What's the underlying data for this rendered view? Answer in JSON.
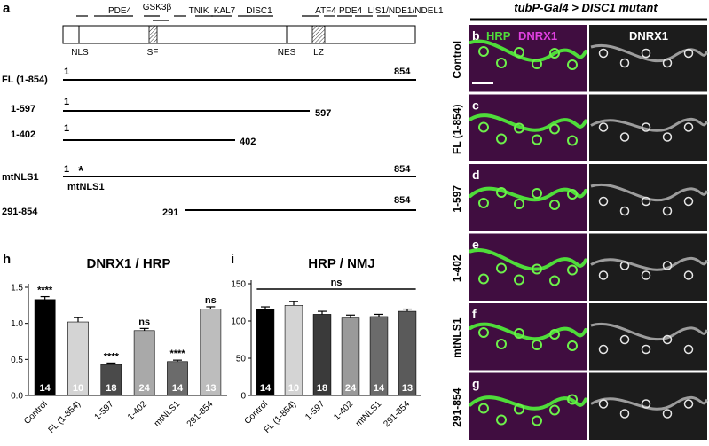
{
  "panel_a": {
    "letter": "a",
    "domains_above": [
      "PDE4",
      "GSK3β",
      "TNIK",
      "KAL7",
      "DISC1",
      "ATF4",
      "PDE4",
      "LIS1/NDE1/NDEL1"
    ],
    "domains_below": [
      "NLS",
      "SF",
      "NES",
      "LZ"
    ],
    "constructs": [
      {
        "name": "FL (1-854)",
        "start": "1",
        "end": "854"
      },
      {
        "name": "1-597",
        "start": "1",
        "end": "597"
      },
      {
        "name": "1-402",
        "start": "1",
        "end": "402"
      },
      {
        "name": "mtNLS1",
        "start": "1",
        "end": "854",
        "mark": "*",
        "sublabel": "mtNLS1"
      },
      {
        "name": "291-854",
        "start": "291",
        "end": "854"
      }
    ]
  },
  "images": {
    "header": "tubP-Gal4 > DISC1 mutant",
    "hrp_label": "HRP",
    "dnrx_label": "DNRX1",
    "right_label": "DNRX1",
    "rows": [
      {
        "letter": "b",
        "name": "Control"
      },
      {
        "letter": "c",
        "name": "FL (1-854)"
      },
      {
        "letter": "d",
        "name": "1-597"
      },
      {
        "letter": "e",
        "name": "1-402"
      },
      {
        "letter": "f",
        "name": "mtNLS1"
      },
      {
        "letter": "g",
        "name": "291-854"
      }
    ]
  },
  "chart_data": [
    {
      "letter": "h",
      "type": "bar",
      "title": "DNRX1 / HRP",
      "categories": [
        "Control",
        "FL (1-854)",
        "1-597",
        "1-402",
        "mtNLS1",
        "291-854"
      ],
      "values": [
        1.33,
        1.02,
        0.43,
        0.9,
        0.47,
        1.2
      ],
      "errors": [
        0.04,
        0.06,
        0.02,
        0.03,
        0.02,
        0.03
      ],
      "n": [
        "14",
        "10",
        "18",
        "24",
        "14",
        "13"
      ],
      "significance": [
        "****",
        "",
        "****",
        "ns",
        "****",
        "ns"
      ],
      "colors": [
        "#000000",
        "#d4d4d4",
        "#4a4a4a",
        "#a9a9a9",
        "#6b6b6b",
        "#bdbdbd"
      ],
      "yticks": [
        "0.0",
        "0.5",
        "1.0",
        "1.5"
      ],
      "ylim": [
        0,
        1.5
      ]
    },
    {
      "letter": "i",
      "type": "bar",
      "title": "HRP / NMJ",
      "categories": [
        "Control",
        "FL (1-854)",
        "1-597",
        "1-402",
        "mtNLS1",
        "291-854"
      ],
      "values": [
        116,
        121,
        109,
        104,
        106,
        113
      ],
      "errors": [
        3,
        5,
        4,
        4,
        3,
        3
      ],
      "n": [
        "14",
        "10",
        "18",
        "24",
        "14",
        "13"
      ],
      "bracket": "ns",
      "colors": [
        "#000000",
        "#d4d4d4",
        "#3a3a3a",
        "#9a9a9a",
        "#6b6b6b",
        "#5a5a5a"
      ],
      "yticks": [
        "0",
        "50",
        "100",
        "150"
      ],
      "ylim": [
        0,
        150
      ]
    }
  ]
}
